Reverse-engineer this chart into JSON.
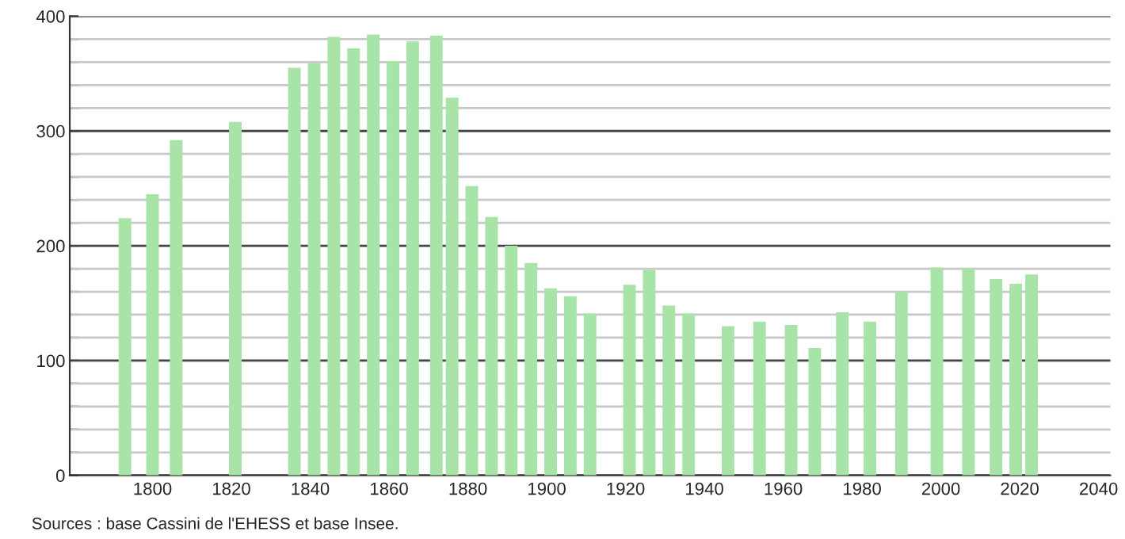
{
  "chart_data": {
    "type": "bar",
    "x": [
      1793,
      1800,
      1806,
      1821,
      1836,
      1841,
      1846,
      1851,
      1856,
      1861,
      1866,
      1872,
      1876,
      1881,
      1886,
      1891,
      1896,
      1901,
      1906,
      1911,
      1921,
      1926,
      1931,
      1936,
      1946,
      1954,
      1962,
      1968,
      1975,
      1982,
      1990,
      1999,
      2007,
      2014,
      2019,
      2023
    ],
    "series": [
      {
        "color": "#a8e4a8",
        "values": [
          224,
          245,
          292,
          308,
          355,
          359,
          382,
          372,
          384,
          361,
          378,
          383,
          329,
          252,
          225,
          200,
          185,
          163,
          156,
          141,
          166,
          179,
          148,
          141,
          130,
          134,
          131,
          111,
          142,
          134,
          160,
          181,
          180,
          171,
          167,
          175
        ]
      }
    ],
    "xlim": [
      1779,
      2043
    ],
    "xticks": [
      1800,
      1820,
      1840,
      1860,
      1880,
      1900,
      1920,
      1940,
      1960,
      1980,
      2000,
      2020,
      2040
    ],
    "ylim": [
      0,
      400
    ],
    "yticks": [
      0,
      {
        "value": 20,
        "label": null
      },
      {
        "value": 40,
        "label": null
      },
      {
        "value": 60,
        "label": null
      },
      {
        "value": 80,
        "label": null
      },
      100,
      {
        "value": 120,
        "label": null
      },
      {
        "value": 140,
        "label": null
      },
      {
        "value": 160,
        "label": null
      },
      {
        "value": 180,
        "label": null
      },
      200,
      {
        "value": 220,
        "label": null
      },
      {
        "value": 240,
        "label": null
      },
      {
        "value": 260,
        "label": null
      },
      {
        "value": 280,
        "label": null
      },
      300,
      {
        "value": 320,
        "label": null
      },
      {
        "value": 340,
        "label": null
      },
      {
        "value": 360,
        "label": null
      },
      {
        "value": 380,
        "label": null
      },
      400
    ],
    "grid": "y",
    "legend": false,
    "annotations": [
      "Sources : base Cassini de l'EHESS et base Insee."
    ]
  }
}
